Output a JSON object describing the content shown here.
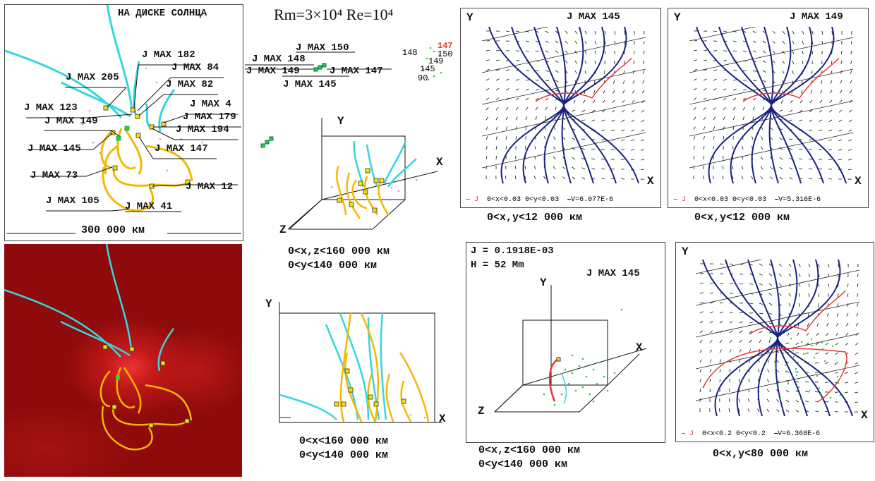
{
  "header": {
    "params": "Rm=3×10⁴   Re=10⁴"
  },
  "p1": {
    "title": "НА ДИСКЕ СОЛНЦА",
    "scale": "300 000 км",
    "labels": [
      "J MAX 182",
      "J MAX 84",
      "J MAX 205",
      "J MAX 82",
      "J MAX 4",
      "J MAX 123",
      "J MAX 179",
      "J MAX 149",
      "J MAX 194",
      "J MAX 145",
      "J MAX 147",
      "J MAX 73",
      "J MAX 12",
      "J MAX 105",
      "J MAX 41"
    ]
  },
  "p3": {
    "labels": [
      "J MAX 150",
      "J MAX 148",
      "J MAX 149",
      "J MAX 147",
      "J MAX 145"
    ],
    "nums": [
      "147",
      "148",
      "150",
      "149",
      "145",
      "90"
    ],
    "axes": {
      "x": "X",
      "y": "Y",
      "z": "Z"
    },
    "cap1": "0<x,z<160 000 км",
    "cap2": "0<y<140 000 км"
  },
  "p4": {
    "axes": {
      "x": "X",
      "y": "Y"
    },
    "cap1": "0<x<160 000 км",
    "cap2": "0<y<140 000 км"
  },
  "p5": {
    "title": "J MAX 145",
    "axes": {
      "x": "X",
      "y": "Y"
    },
    "legend": {
      "j": "J",
      "range": "0<x<0.03 0<y<0.03",
      "v": "V=6.077E-6"
    },
    "cap": "0<x,y<12 000 км"
  },
  "p6": {
    "title": "J MAX 149",
    "axes": {
      "x": "X",
      "y": "Y"
    },
    "legend": {
      "j": "J",
      "range": "0<x<0.03 0<y<0.03",
      "v": "V=5.316E-6"
    },
    "cap": "0<x,y<12 000 км"
  },
  "p7": {
    "j": "J = 0.1918E-03",
    "h": "H = 52 Mm",
    "title": "J MAX 145",
    "axes": {
      "x": "X",
      "y": "Y",
      "z": "Z"
    },
    "cap1": "0<x,z<160 000 км",
    "cap2": "0<y<140 000 км"
  },
  "p8": {
    "axes": {
      "x": "X",
      "y": "Y"
    },
    "legend": {
      "j": "J",
      "range": "0<x<0.2  0<y<0.2",
      "v": "V=6.368E-6"
    },
    "cap": "0<x,y<80 000 км"
  },
  "colors": {
    "cyan": "#35d6e0",
    "orange": "#f5b800",
    "navy": "#1a237e",
    "red": "#e53935",
    "green": "#2ecc40",
    "darkred": "#8b0000"
  }
}
